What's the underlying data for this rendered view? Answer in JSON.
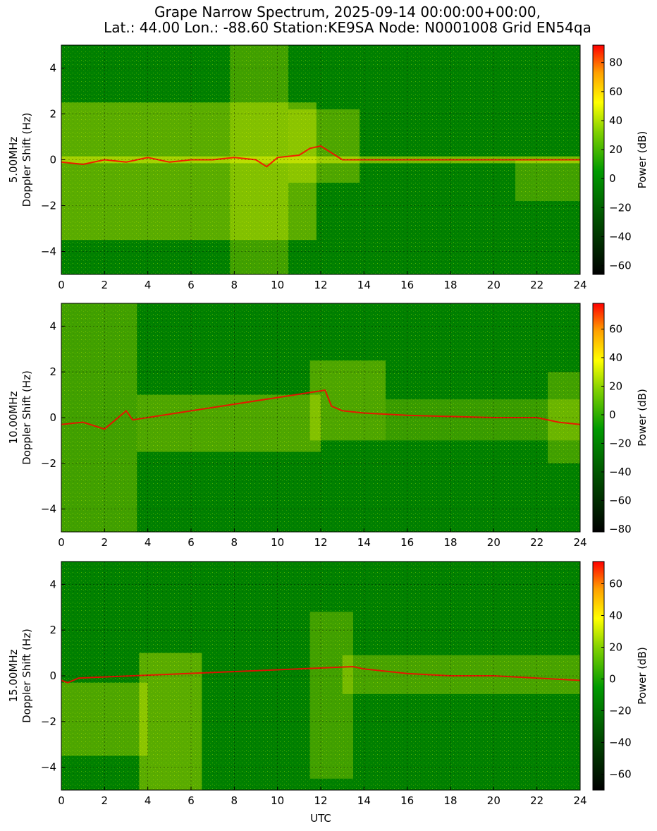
{
  "title_line1": "Grape Narrow Spectrum, 2025-09-14 00:00:00+00:00,",
  "title_line2": "Lat.: 44.00 Lon.: -88.60 Station:KE9SA Node: N0001008 Grid EN54qa",
  "chart_data": [
    {
      "type": "heatmap",
      "panel_label": "5.00MHz",
      "ylabel": "Doppler Shift (Hz)",
      "xlabel": "",
      "xlim": [
        0,
        24
      ],
      "ylim": [
        -5,
        5
      ],
      "x_ticks": [
        0,
        2,
        4,
        6,
        8,
        10,
        12,
        14,
        16,
        18,
        20,
        22,
        24
      ],
      "y_ticks": [
        -4,
        -2,
        0,
        2,
        4
      ],
      "grid": true,
      "colorbar": {
        "label": "Power (dB)",
        "min": -66,
        "max": 92,
        "ticks": [
          -60,
          -40,
          -20,
          0,
          20,
          40,
          60,
          80
        ]
      },
      "colors": {
        "background": "#007f00",
        "signal": "#ffff00",
        "peak": "#ff0000"
      },
      "trace": [
        [
          0,
          -0.1
        ],
        [
          1,
          -0.2
        ],
        [
          2,
          0.0
        ],
        [
          3,
          -0.1
        ],
        [
          4,
          0.1
        ],
        [
          5,
          -0.1
        ],
        [
          6,
          0.0
        ],
        [
          7,
          0.0
        ],
        [
          8,
          0.1
        ],
        [
          9,
          0.0
        ],
        [
          9.5,
          -0.3
        ],
        [
          10,
          0.1
        ],
        [
          11,
          0.2
        ],
        [
          11.5,
          0.5
        ],
        [
          12,
          0.6
        ],
        [
          13,
          0.0
        ],
        [
          24,
          0.0
        ]
      ]
    },
    {
      "type": "heatmap",
      "panel_label": "10.00MHz",
      "ylabel": "Doppler Shift (Hz)",
      "xlabel": "",
      "xlim": [
        0,
        24
      ],
      "ylim": [
        -5,
        5
      ],
      "x_ticks": [
        0,
        2,
        4,
        6,
        8,
        10,
        12,
        14,
        16,
        18,
        20,
        22,
        24
      ],
      "y_ticks": [
        -4,
        -2,
        0,
        2,
        4
      ],
      "grid": true,
      "colorbar": {
        "label": "Power (dB)",
        "min": -82,
        "max": 78,
        "ticks": [
          -80,
          -60,
          -40,
          -20,
          0,
          20,
          40,
          60
        ]
      },
      "colors": {
        "background": "#007f00",
        "signal": "#ffff00",
        "peak": "#ff0000"
      },
      "trace": [
        [
          0,
          -0.3
        ],
        [
          1,
          -0.2
        ],
        [
          2,
          -0.5
        ],
        [
          3,
          0.3
        ],
        [
          3.3,
          -0.1
        ],
        [
          12.2,
          1.2
        ],
        [
          12.5,
          0.5
        ],
        [
          13,
          0.3
        ],
        [
          14,
          0.2
        ],
        [
          16,
          0.1
        ],
        [
          20,
          0.0
        ],
        [
          22,
          0.0
        ],
        [
          23,
          -0.2
        ],
        [
          24,
          -0.3
        ]
      ]
    },
    {
      "type": "heatmap",
      "panel_label": "15.00MHz",
      "ylabel": "Doppler Shift (Hz)",
      "xlabel": "UTC",
      "xlim": [
        0,
        24
      ],
      "ylim": [
        -5,
        5
      ],
      "x_ticks": [
        0,
        2,
        4,
        6,
        8,
        10,
        12,
        14,
        16,
        18,
        20,
        22,
        24
      ],
      "y_ticks": [
        -4,
        -2,
        0,
        2,
        4
      ],
      "grid": true,
      "colorbar": {
        "label": "Power (dB)",
        "min": -70,
        "max": 74,
        "ticks": [
          -60,
          -40,
          -20,
          0,
          20,
          40,
          60
        ]
      },
      "colors": {
        "background": "#007f00",
        "signal": "#ffff00",
        "peak": "#ff0000"
      },
      "trace": [
        [
          0,
          -0.2
        ],
        [
          0.3,
          -0.3
        ],
        [
          0.8,
          -0.1
        ],
        [
          13.5,
          0.4
        ],
        [
          14,
          0.3
        ],
        [
          16,
          0.1
        ],
        [
          18,
          0.0
        ],
        [
          20,
          0.0
        ],
        [
          22,
          -0.1
        ],
        [
          24,
          -0.2
        ]
      ]
    }
  ]
}
